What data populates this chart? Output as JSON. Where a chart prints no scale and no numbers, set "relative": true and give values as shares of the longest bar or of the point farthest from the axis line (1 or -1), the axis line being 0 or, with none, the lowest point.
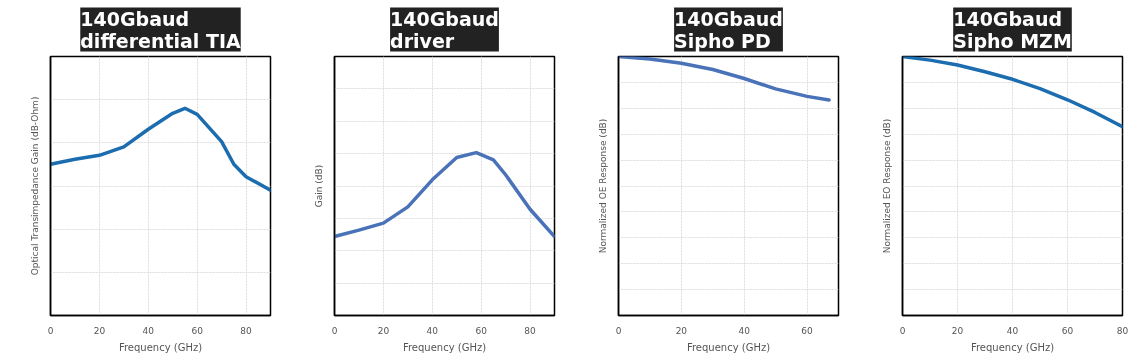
{
  "chart_data": [
    {
      "type": "line",
      "title": "140Gbaud\ndifferential TIA",
      "xlabel": "Frequency (GHz)",
      "ylabel": "Optical Transimpedance Gain (dB-Ohm)",
      "relative": true,
      "xlim": [
        0,
        90
      ],
      "xticks": [
        0,
        20,
        40,
        60,
        80
      ],
      "grid": true,
      "series": [
        {
          "color": "#1b6db0",
          "x": [
            0,
            10,
            20,
            30,
            40,
            50,
            55,
            60,
            70,
            75,
            80,
            90
          ],
          "values": [
            0.73,
            0.754,
            0.773,
            0.814,
            0.899,
            0.976,
            1.0,
            0.971,
            0.839,
            0.73,
            0.67,
            0.605
          ]
        }
      ]
    },
    {
      "type": "line",
      "title": "140Gbaud\ndriver",
      "xlabel": "Frequency (GHz)",
      "ylabel": "Gain (dB)",
      "relative": true,
      "xlim": [
        0,
        90
      ],
      "xticks": [
        0,
        20,
        40,
        60,
        80
      ],
      "grid": true,
      "series": [
        {
          "color": "#4a72b8",
          "x": [
            0,
            10,
            20,
            30,
            40,
            50,
            58,
            65,
            70,
            80,
            90
          ],
          "values": [
            0.485,
            0.524,
            0.567,
            0.667,
            0.833,
            0.97,
            1.0,
            0.955,
            0.864,
            0.652,
            0.485
          ]
        }
      ]
    },
    {
      "type": "line",
      "title": "140Gbaud\nSipho PD",
      "xlabel": "Frequency (GHz)",
      "ylabel": "Normalized OE Response (dB)",
      "relative": true,
      "xlim": [
        0,
        70
      ],
      "xticks": [
        0,
        20,
        40,
        60
      ],
      "grid": true,
      "series": [
        {
          "color": "#4a72b8",
          "x": [
            0,
            10,
            20,
            30,
            40,
            50,
            60,
            67
          ],
          "values": [
            1.0,
            0.99,
            0.974,
            0.95,
            0.915,
            0.875,
            0.846,
            0.832
          ]
        }
      ]
    },
    {
      "type": "line",
      "title": "140Gbaud\nSipho MZM",
      "xlabel": "Frequency (GHz)",
      "ylabel": "Normalized EO Response (dB)",
      "relative": true,
      "xlim": [
        0,
        80
      ],
      "xticks": [
        0,
        20,
        40,
        60,
        80
      ],
      "grid": true,
      "series": [
        {
          "color": "#1b6db0",
          "x": [
            0,
            10,
            20,
            30,
            40,
            50,
            60,
            70,
            80
          ],
          "values": [
            1.0,
            0.986,
            0.967,
            0.941,
            0.912,
            0.876,
            0.833,
            0.784,
            0.729
          ]
        }
      ]
    }
  ]
}
